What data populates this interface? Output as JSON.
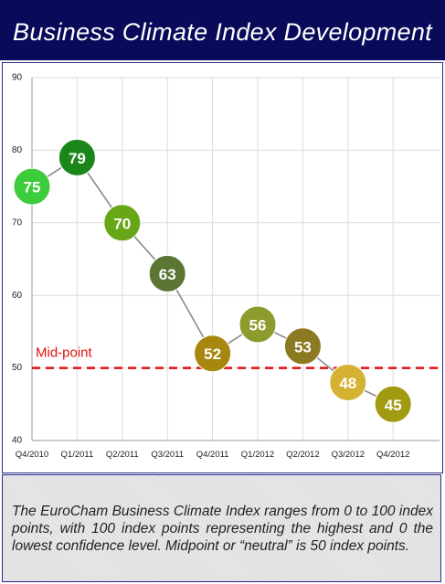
{
  "chart_data": {
    "type": "line",
    "title": "Business Climate Index Development",
    "categories": [
      "Q4/2010",
      "Q1/2011",
      "Q2/2011",
      "Q3/2011",
      "Q4/2011",
      "Q1/2012",
      "Q2/2012",
      "Q3/2012",
      "Q4/2012"
    ],
    "series": [
      {
        "name": "Business Climate Index",
        "color": "#8a8a8a",
        "values": [
          75,
          79,
          70,
          63,
          52,
          56,
          53,
          48,
          45
        ],
        "point_colors": [
          "#3ccc3c",
          "#1b871b",
          "#67a617",
          "#5a7632",
          "#a8870e",
          "#8c9a2e",
          "#8c7a22",
          "#d6b232",
          "#a29b12"
        ]
      }
    ],
    "ylim": [
      40,
      90
    ],
    "yticks": [
      40,
      50,
      60,
      70,
      80,
      90
    ],
    "grid": true,
    "reference_line": {
      "value": 50,
      "label": "Mid-point",
      "color": "#e01010"
    },
    "footnote": "The EuroCham Business Climate Index ranges from 0 to 100 index points, with 100 index points representing the highest and 0 the lowest confidence level. Midpoint or “neutral” is 50 index points."
  }
}
